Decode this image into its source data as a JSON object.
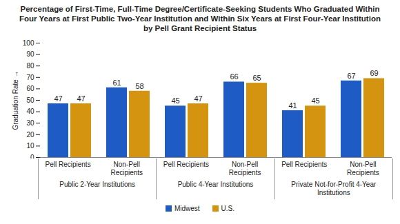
{
  "chart_data": {
    "type": "bar",
    "title": "Percentage of First-Time, Full-Time Degree/Certificate-Seeking Students Who Graduated Within Four Years at First Public Two-Year Institution and Within Six Years at First Four-Year Institution by Pell Grant Recipient Status",
    "y_label": "Graduation Rate",
    "categories": [
      "Pell Recipients",
      "Non-Pell Recipients",
      "Pell Recipients",
      "Non-Pell Recipients",
      "Pell Recipients",
      "Non-Pell Recipients"
    ],
    "groups": [
      "Public 2-Year Institutions",
      "Public 2-Year Institutions",
      "Public 4-Year Institutions",
      "Public 4-Year Institutions",
      "Private Not-for-Profit 4-Year Institutions",
      "Private Not-for-Profit 4-Year Institutions"
    ],
    "series": [
      {
        "name": "Midwest",
        "color": "#1f5bc4",
        "values": [
          47,
          61,
          45,
          66,
          41,
          67
        ]
      },
      {
        "name": "U.S.",
        "color": "#d4940f",
        "values": [
          47,
          58,
          47,
          65,
          45,
          69
        ]
      }
    ],
    "ylim": [
      0,
      100
    ],
    "yticks": [
      0,
      10,
      20,
      30,
      40,
      50,
      60,
      70,
      80,
      90,
      100
    ],
    "grid": false,
    "data_labels": true,
    "legend": "bottom"
  }
}
